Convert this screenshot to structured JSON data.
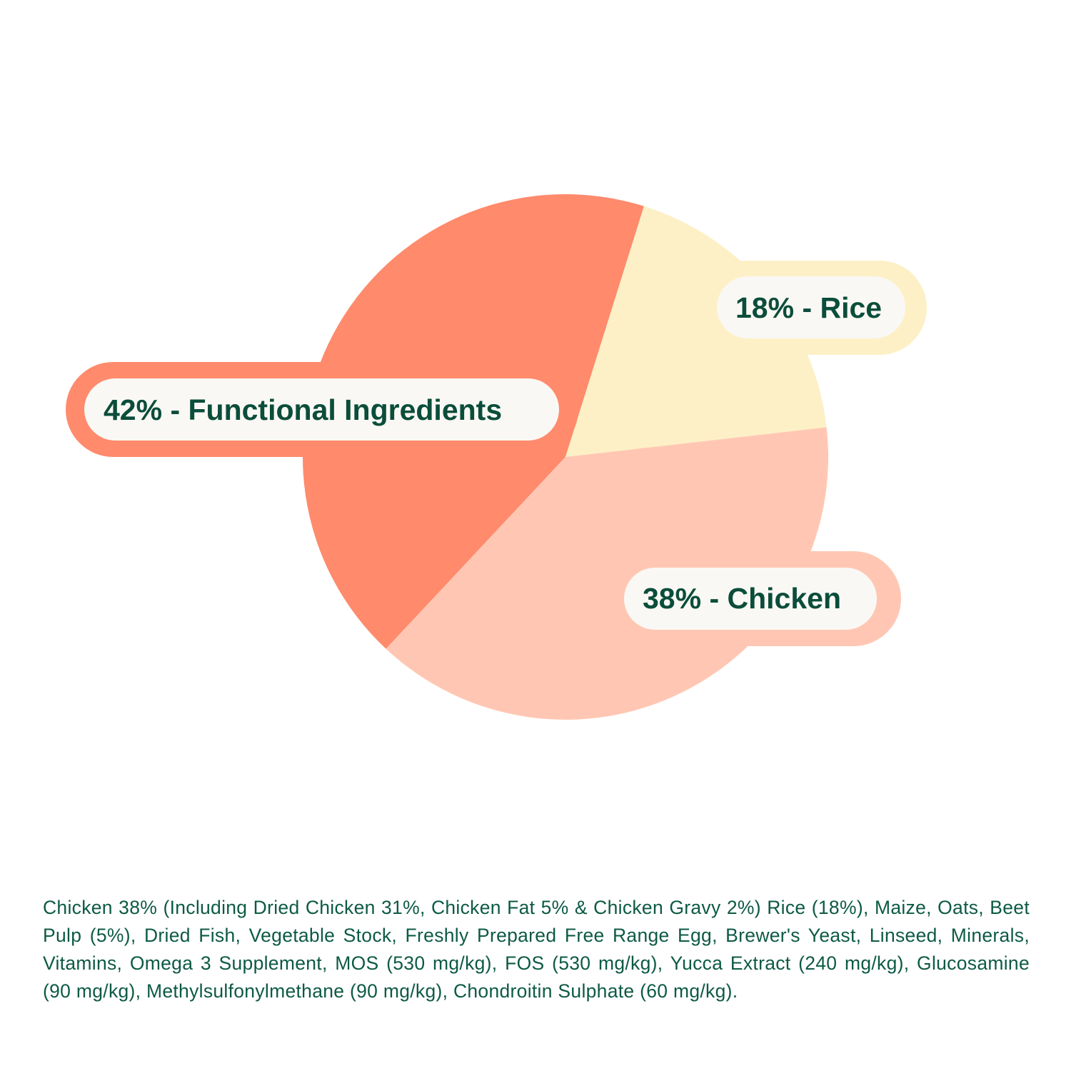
{
  "chart_data": {
    "type": "pie",
    "values": [
      42,
      18,
      38
    ],
    "value_labels": [
      "42% - Functional Ingredients",
      "18% - Rice",
      "38% - Chicken"
    ],
    "colors": [
      "#ff8a6c",
      "#fdf0c6",
      "#ffc7b3"
    ],
    "caption": "Chicken 38% (Including Dried Chicken 31%, Chicken Fat 5% & Chicken Gravy 2%) Rice (18%), Maize, Oats, Beet Pulp (5%), Dried Fish, Vegetable Stock, Freshly Prepared Free Range Egg, Brewer's Yeast, Linseed, Minerals, Vitamins, Omega 3 Supplement, MOS (530 mg/kg), FOS (530 mg/kg), Yucca Extract (240 mg/kg), Glucosamine (90 mg/kg), Methylsulfonylmethane (90 mg/kg), Chondroitin Sulphate (60 mg/kg)."
  }
}
